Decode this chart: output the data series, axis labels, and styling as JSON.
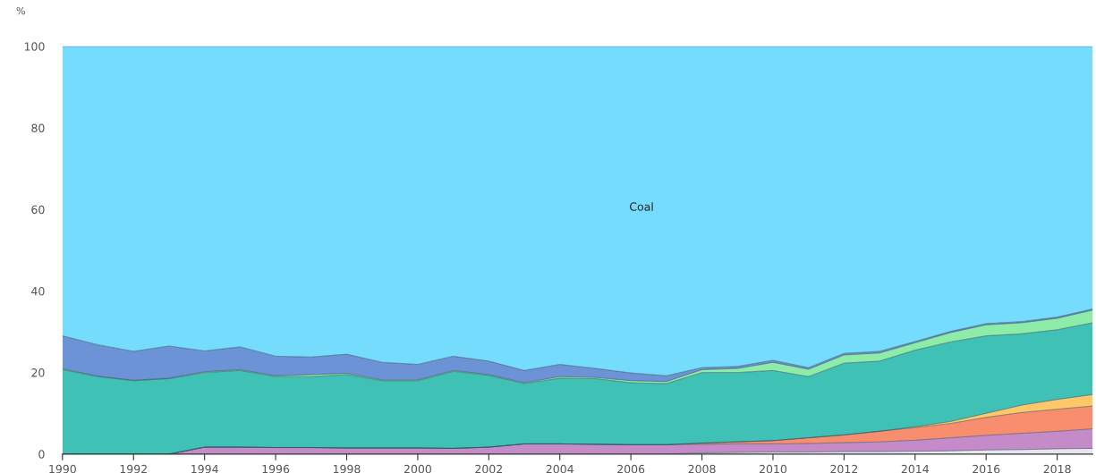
{
  "chart_data": {
    "type": "area",
    "stacked": true,
    "ylabel": "%",
    "x": [
      1990,
      1991,
      1992,
      1993,
      1994,
      1995,
      1996,
      1997,
      1998,
      1999,
      2000,
      2001,
      2002,
      2003,
      2004,
      2005,
      2006,
      2007,
      2008,
      2009,
      2010,
      2011,
      2012,
      2013,
      2014,
      2015,
      2016,
      2017,
      2018,
      2019
    ],
    "series": [
      {
        "color": "#e6e6ee",
        "values": [
          0,
          0,
          0,
          0,
          0,
          0,
          0,
          0,
          0,
          0,
          0,
          0,
          0,
          0,
          0,
          0,
          0,
          0,
          0.3,
          0.4,
          0.5,
          0.5,
          0.6,
          0.6,
          0.7,
          0.8,
          1.0,
          1.1,
          1.3,
          1.4
        ]
      },
      {
        "color": "#c58bc9",
        "values": [
          0,
          0,
          0,
          0,
          1.7,
          1.7,
          1.6,
          1.6,
          1.5,
          1.5,
          1.5,
          1.4,
          1.7,
          2.5,
          2.5,
          2.4,
          2.3,
          2.3,
          2.1,
          2.1,
          2.0,
          2.1,
          2.2,
          2.4,
          2.7,
          3.2,
          3.6,
          4.0,
          4.3,
          4.8
        ]
      },
      {
        "color": "#f98e6e",
        "values": [
          0,
          0,
          0,
          0,
          0,
          0,
          0,
          0,
          0,
          0,
          0,
          0,
          0,
          0,
          0,
          0,
          0,
          0,
          0.3,
          0.5,
          0.8,
          1.4,
          1.9,
          2.6,
          3.1,
          3.5,
          4.4,
          5.1,
          5.4,
          5.6
        ]
      },
      {
        "color": "#fdc76a",
        "values": [
          0,
          0,
          0,
          0,
          0,
          0,
          0,
          0,
          0,
          0,
          0,
          0,
          0,
          0,
          0,
          0,
          0,
          0,
          0,
          0,
          0,
          0,
          0,
          0,
          0.2,
          0.5,
          1.0,
          1.8,
          2.4,
          2.8
        ]
      },
      {
        "color": "#3fc1b5",
        "values": [
          20.7,
          19,
          18,
          18.5,
          18.3,
          18.8,
          17.4,
          17.4,
          18.0,
          16.5,
          16.5,
          18.9,
          17.6,
          14.8,
          16.1,
          16.1,
          15.2,
          15.0,
          17.3,
          17.0,
          17.2,
          15.0,
          17.6,
          17.2,
          18.8,
          19.5,
          19.0,
          17.5,
          17.1,
          17.6
        ]
      },
      {
        "color": "#8deca8",
        "values": [
          0.2,
          0.1,
          0.1,
          0.1,
          0.2,
          0.2,
          0.2,
          0.5,
          0.3,
          0.2,
          0.2,
          0.2,
          0.2,
          0.2,
          0.4,
          0.3,
          0.5,
          0.5,
          0.7,
          1.0,
          2.0,
          1.8,
          2.0,
          2.0,
          1.8,
          2.3,
          2.7,
          2.7,
          2.8,
          3.1
        ]
      },
      {
        "color": "#6b93d6",
        "values": [
          8.1,
          7.7,
          7.1,
          7.9,
          5.1,
          5.6,
          4.8,
          4.3,
          4.7,
          4.3,
          3.8,
          3.5,
          3.3,
          3.0,
          3.0,
          2.2,
          1.9,
          1.4,
          0.5,
          0.5,
          0.5,
          0.4,
          0.4,
          0.4,
          0.3,
          0.3,
          0.3,
          0.3,
          0.3,
          0.3
        ]
      },
      {
        "name": "Coal",
        "color": "#76dcfd",
        "values": [
          71.0,
          73.2,
          74.8,
          73.5,
          74.7,
          73.7,
          76.0,
          76.2,
          75.5,
          77.5,
          78.0,
          76.0,
          77.2,
          79.5,
          78.0,
          79.0,
          80.1,
          80.8,
          78.8,
          78.5,
          77.0,
          78.8,
          75.3,
          74.8,
          72.4,
          69.9,
          68.0,
          67.5,
          66.4,
          64.4
        ]
      }
    ],
    "xlim": [
      1990,
      2019
    ],
    "xticks": [
      1990,
      1992,
      1994,
      1996,
      1998,
      2000,
      2002,
      2004,
      2006,
      2008,
      2010,
      2012,
      2014,
      2016,
      2018
    ],
    "ylim": [
      0,
      100
    ],
    "yticks": [
      0,
      20,
      40,
      60,
      80,
      100
    ],
    "grid": false,
    "legend": false
  }
}
